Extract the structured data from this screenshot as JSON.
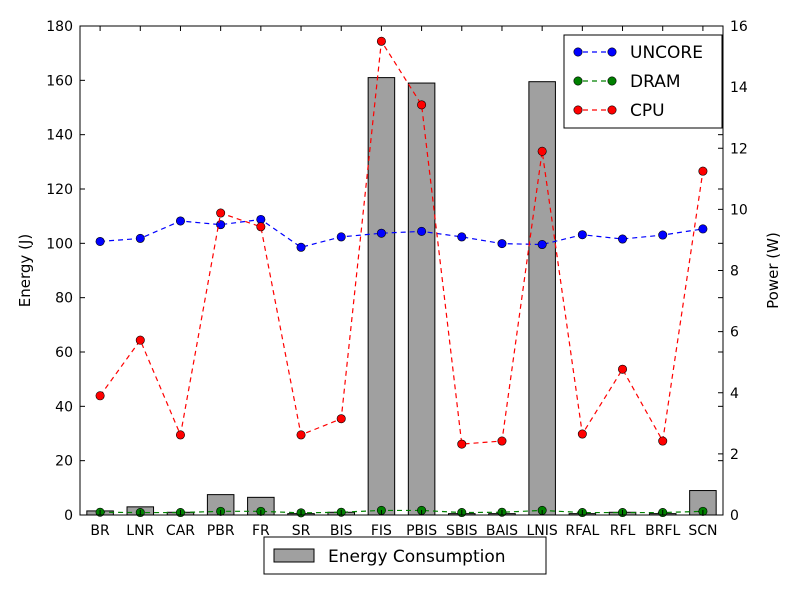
{
  "chart_data": {
    "type": "bar+line",
    "categories": [
      "BR",
      "LNR",
      "CAR",
      "PBR",
      "FR",
      "SR",
      "BIS",
      "FIS",
      "PBIS",
      "SBIS",
      "BAIS",
      "LNIS",
      "RFAL",
      "RFL",
      "BRFL",
      "SCN"
    ],
    "bar_series": {
      "name": "Energy Consumption",
      "axis": "left",
      "color": "#a0a0a0",
      "values": [
        1.5,
        3,
        1,
        7.5,
        6.5,
        0.5,
        1,
        161,
        159,
        0.5,
        0.5,
        159.5,
        0.5,
        1,
        0.5,
        9
      ]
    },
    "line_series": [
      {
        "name": "UNCORE",
        "axis": "right",
        "color": "#0000ff",
        "values": [
          8.95,
          9.05,
          9.62,
          9.5,
          9.67,
          8.76,
          9.1,
          9.22,
          9.28,
          9.1,
          8.88,
          8.85,
          9.17,
          9.03,
          9.16,
          9.36
        ]
      },
      {
        "name": "DRAM",
        "axis": "right",
        "color": "#008000",
        "values": [
          0.09,
          0.08,
          0.08,
          0.12,
          0.12,
          0.07,
          0.09,
          0.15,
          0.15,
          0.08,
          0.09,
          0.15,
          0.08,
          0.08,
          0.08,
          0.12
        ]
      },
      {
        "name": "CPU",
        "axis": "right",
        "color": "#ff0000",
        "values": [
          3.9,
          5.72,
          2.62,
          9.88,
          9.43,
          2.62,
          3.15,
          15.5,
          13.42,
          2.32,
          2.42,
          11.9,
          2.65,
          4.77,
          2.42,
          11.25
        ]
      }
    ],
    "ylabel": "Energy (J)",
    "ylabel_right": "Power (W)",
    "ylim": [
      0,
      180
    ],
    "ylim_right": [
      0,
      16
    ],
    "yticks": [
      0,
      20,
      40,
      60,
      80,
      100,
      120,
      140,
      160,
      180
    ],
    "yticks_right": [
      0,
      2,
      4,
      6,
      8,
      10,
      12,
      14,
      16
    ],
    "legend_lines_placement": "top-right",
    "legend_bars_placement": "bottom-center-outside",
    "grid": false
  }
}
